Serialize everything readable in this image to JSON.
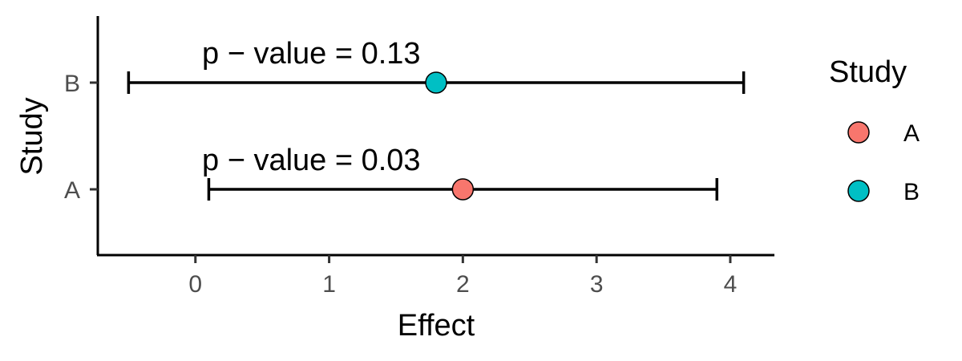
{
  "chart_data": {
    "type": "forest",
    "xlabel": "Effect",
    "ylabel": "Study",
    "xlim": [
      -0.73,
      4.33
    ],
    "x_ticks": [
      0,
      1,
      2,
      3,
      4
    ],
    "categories": [
      "A",
      "B"
    ],
    "points": [
      {
        "study": "A",
        "estimate": 2.0,
        "lower": 0.1,
        "upper": 3.9,
        "color": "#F8766D",
        "annotation": "p − value = 0.03"
      },
      {
        "study": "B",
        "estimate": 1.8,
        "lower": -0.5,
        "upper": 4.1,
        "color": "#00BFC4",
        "annotation": "p − value = 0.13"
      }
    ],
    "legend": {
      "title": "Study",
      "position": "right",
      "items": [
        {
          "label": "A",
          "color": "#F8766D"
        },
        {
          "label": "B",
          "color": "#00BFC4"
        }
      ]
    },
    "grid": false
  }
}
